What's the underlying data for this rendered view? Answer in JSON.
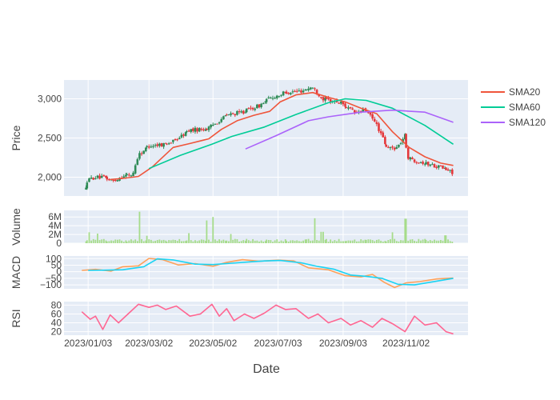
{
  "chart_data": {
    "type": "candlestick-multi-panel",
    "xlabel": "Date",
    "x_tick_labels": [
      "2023/01/03",
      "2023/03/02",
      "2023/05/02",
      "2023/07/03",
      "2023/09/03",
      "2023/11/02"
    ],
    "x_tick_dates": [
      "2023-01-03",
      "2023-03-02",
      "2023-05-02",
      "2023-07-03",
      "2023-09-03",
      "2023-11-02"
    ],
    "x_range": [
      "2022-12-11",
      "2023-12-31"
    ],
    "colors": {
      "increasing": "#2e8b57",
      "decreasing": "#e5383b",
      "sma20": "#ef553b",
      "sma60": "#00cc96",
      "sma120": "#ab63fa",
      "volume": "#a6dc8a",
      "macd": "#ffa15a",
      "signal": "#19d3f3",
      "rsi": "#ff6692",
      "panel_bg": "#e5ecf6",
      "grid": "#ffffff"
    },
    "panels": [
      {
        "key": "price",
        "ylabel": "Price",
        "ylim": [
          1760,
          3240
        ],
        "yticks": [
          2000,
          2500,
          3000
        ],
        "ytick_labels": [
          "2,000",
          "2,500",
          "3,000"
        ],
        "series": [
          {
            "name": "SMA20",
            "key": "sma20",
            "x": [
              "2023-01-24",
              "2023-02-05",
              "2023-02-20",
              "2023-03-05",
              "2023-03-25",
              "2023-04-10",
              "2023-04-28",
              "2023-05-10",
              "2023-05-25",
              "2023-06-10",
              "2023-06-25",
              "2023-07-05",
              "2023-07-20",
              "2023-08-05",
              "2023-08-20",
              "2023-09-05",
              "2023-09-20",
              "2023-10-05",
              "2023-10-20",
              "2023-11-05",
              "2023-11-20",
              "2023-12-05",
              "2023-12-17"
            ],
            "values": [
              1970,
              1985,
              2010,
              2130,
              2380,
              2430,
              2490,
              2610,
              2720,
              2790,
              2840,
              2960,
              3050,
              3080,
              3020,
              2960,
              2880,
              2810,
              2580,
              2380,
              2260,
              2180,
              2150
            ]
          },
          {
            "name": "SMA60",
            "key": "sma60",
            "x": [
              "2023-03-02",
              "2023-04-01",
              "2023-05-01",
              "2023-05-20",
              "2023-06-20",
              "2023-07-20",
              "2023-08-20",
              "2023-09-05",
              "2023-09-25",
              "2023-10-20",
              "2023-11-20",
              "2023-12-17"
            ],
            "values": [
              2110,
              2280,
              2420,
              2520,
              2640,
              2800,
              2950,
              3000,
              2980,
              2880,
              2660,
              2420
            ]
          },
          {
            "name": "SMA120",
            "key": "sma120",
            "x": [
              "2023-06-02",
              "2023-07-01",
              "2023-08-01",
              "2023-08-20",
              "2023-09-20",
              "2023-10-20",
              "2023-11-20",
              "2023-12-17"
            ],
            "values": [
              2360,
              2530,
              2720,
              2770,
              2830,
              2855,
              2830,
              2700
            ]
          }
        ],
        "candles": {
          "start": "2023-01-01",
          "end": "2023-12-17",
          "step_days": 1.9,
          "anchors": [
            {
              "date": "2023-01-01",
              "v": 1850
            },
            {
              "date": "2023-01-03",
              "v": 1960
            },
            {
              "date": "2023-01-10",
              "v": 2000
            },
            {
              "date": "2023-01-20",
              "v": 1990
            },
            {
              "date": "2023-01-28",
              "v": 1950
            },
            {
              "date": "2023-02-05",
              "v": 2020
            },
            {
              "date": "2023-02-15",
              "v": 2030
            },
            {
              "date": "2023-02-20",
              "v": 2280
            },
            {
              "date": "2023-03-02",
              "v": 2400
            },
            {
              "date": "2023-03-15",
              "v": 2420
            },
            {
              "date": "2023-03-25",
              "v": 2450
            },
            {
              "date": "2023-04-10",
              "v": 2600
            },
            {
              "date": "2023-04-28",
              "v": 2620
            },
            {
              "date": "2023-05-15",
              "v": 2790
            },
            {
              "date": "2023-05-30",
              "v": 2830
            },
            {
              "date": "2023-06-15",
              "v": 2910
            },
            {
              "date": "2023-06-25",
              "v": 3000
            },
            {
              "date": "2023-07-10",
              "v": 3080
            },
            {
              "date": "2023-07-25",
              "v": 3100
            },
            {
              "date": "2023-08-05",
              "v": 3150
            },
            {
              "date": "2023-08-15",
              "v": 3000
            },
            {
              "date": "2023-09-01",
              "v": 2950
            },
            {
              "date": "2023-09-15",
              "v": 2820
            },
            {
              "date": "2023-09-25",
              "v": 2860
            },
            {
              "date": "2023-10-05",
              "v": 2680
            },
            {
              "date": "2023-10-15",
              "v": 2370
            },
            {
              "date": "2023-10-25",
              "v": 2380
            },
            {
              "date": "2023-11-01",
              "v": 2530
            },
            {
              "date": "2023-11-05",
              "v": 2240
            },
            {
              "date": "2023-11-20",
              "v": 2180
            },
            {
              "date": "2023-12-05",
              "v": 2130
            },
            {
              "date": "2023-12-17",
              "v": 2060
            }
          ]
        }
      },
      {
        "key": "volume",
        "ylabel": "Volume",
        "ylim": [
          0,
          7500000
        ],
        "yticks": [
          0,
          2000000,
          4000000,
          6000000
        ],
        "ytick_labels": [
          "0",
          "2M",
          "4M",
          "6M"
        ],
        "bars": {
          "start": "2023-01-01",
          "end": "2023-12-17",
          "step_days": 1.9,
          "base": 550000,
          "spikes": [
            {
              "date": "2023-01-05",
              "v": 2500000
            },
            {
              "date": "2023-01-13",
              "v": 2200000
            },
            {
              "date": "2023-02-21",
              "v": 7200000
            },
            {
              "date": "2023-03-01",
              "v": 1700000
            },
            {
              "date": "2023-04-10",
              "v": 2300000
            },
            {
              "date": "2023-04-27",
              "v": 5200000
            },
            {
              "date": "2023-05-02",
              "v": 6000000
            },
            {
              "date": "2023-05-20",
              "v": 2100000
            },
            {
              "date": "2023-08-08",
              "v": 5700000
            },
            {
              "date": "2023-08-14",
              "v": 2600000
            },
            {
              "date": "2023-10-20",
              "v": 2500000
            },
            {
              "date": "2023-11-02",
              "v": 5600000
            },
            {
              "date": "2023-12-10",
              "v": 1800000
            }
          ]
        }
      },
      {
        "key": "macd",
        "ylabel": "MACD",
        "ylim": [
          -130,
          120
        ],
        "yticks": [
          -100,
          -50,
          0,
          50,
          100
        ],
        "ytick_labels": [
          "−100",
          "−50",
          "0",
          "50",
          "100"
        ],
        "series": [
          {
            "key": "macd",
            "x": [
              "2022-12-28",
              "2023-01-10",
              "2023-01-25",
              "2023-02-05",
              "2023-02-20",
              "2023-03-02",
              "2023-03-15",
              "2023-03-30",
              "2023-04-15",
              "2023-05-02",
              "2023-05-15",
              "2023-05-30",
              "2023-06-15",
              "2023-07-03",
              "2023-07-18",
              "2023-08-01",
              "2023-08-20",
              "2023-09-05",
              "2023-09-20",
              "2023-10-01",
              "2023-10-12",
              "2023-10-22",
              "2023-11-02",
              "2023-11-15",
              "2023-12-01",
              "2023-12-17"
            ],
            "values": [
              10,
              18,
              5,
              38,
              45,
              102,
              92,
              52,
              62,
              42,
              72,
              92,
              80,
              88,
              82,
              30,
              15,
              -30,
              -40,
              -20,
              -80,
              -120,
              -85,
              -75,
              -55,
              -48
            ]
          },
          {
            "key": "signal",
            "x": [
              "2023-01-03",
              "2023-01-20",
              "2023-02-05",
              "2023-02-25",
              "2023-03-10",
              "2023-03-25",
              "2023-04-15",
              "2023-05-02",
              "2023-05-20",
              "2023-06-05",
              "2023-06-20",
              "2023-07-05",
              "2023-07-25",
              "2023-08-10",
              "2023-08-25",
              "2023-09-10",
              "2023-09-25",
              "2023-10-10",
              "2023-10-25",
              "2023-11-10",
              "2023-11-25",
              "2023-12-17"
            ],
            "values": [
              10,
              12,
              15,
              38,
              98,
              90,
              58,
              55,
              65,
              75,
              82,
              86,
              68,
              40,
              20,
              -25,
              -35,
              -50,
              -95,
              -100,
              -80,
              -50
            ]
          }
        ]
      },
      {
        "key": "rsi",
        "ylabel": "RSI",
        "ylim": [
          12,
          88
        ],
        "yticks": [
          20,
          40,
          60,
          80
        ],
        "ytick_labels": [
          "20",
          "40",
          "60",
          "80"
        ],
        "series": [
          {
            "key": "rsi",
            "x": [
              "2022-12-28",
              "2023-01-05",
              "2023-01-10",
              "2023-01-17",
              "2023-01-24",
              "2023-02-01",
              "2023-02-10",
              "2023-02-20",
              "2023-03-02",
              "2023-03-10",
              "2023-03-18",
              "2023-03-28",
              "2023-04-10",
              "2023-04-20",
              "2023-05-01",
              "2023-05-08",
              "2023-05-15",
              "2023-05-22",
              "2023-06-01",
              "2023-06-10",
              "2023-06-20",
              "2023-07-01",
              "2023-07-10",
              "2023-07-20",
              "2023-08-01",
              "2023-08-10",
              "2023-08-20",
              "2023-09-01",
              "2023-09-10",
              "2023-09-20",
              "2023-10-01",
              "2023-10-10",
              "2023-10-20",
              "2023-11-01",
              "2023-11-10",
              "2023-11-20",
              "2023-12-01",
              "2023-12-10",
              "2023-12-17"
            ],
            "values": [
              65,
              48,
              55,
              25,
              58,
              40,
              60,
              82,
              75,
              80,
              70,
              78,
              55,
              60,
              82,
              55,
              72,
              45,
              60,
              50,
              62,
              80,
              70,
              72,
              50,
              60,
              40,
              50,
              35,
              45,
              30,
              50,
              38,
              20,
              55,
              35,
              40,
              20,
              15
            ]
          }
        ]
      }
    ],
    "legend": {
      "position": "top-right",
      "items": [
        {
          "key": "sma20",
          "label": "SMA20"
        },
        {
          "key": "sma60",
          "label": "SMA60"
        },
        {
          "key": "sma120",
          "label": "SMA120"
        }
      ]
    }
  }
}
